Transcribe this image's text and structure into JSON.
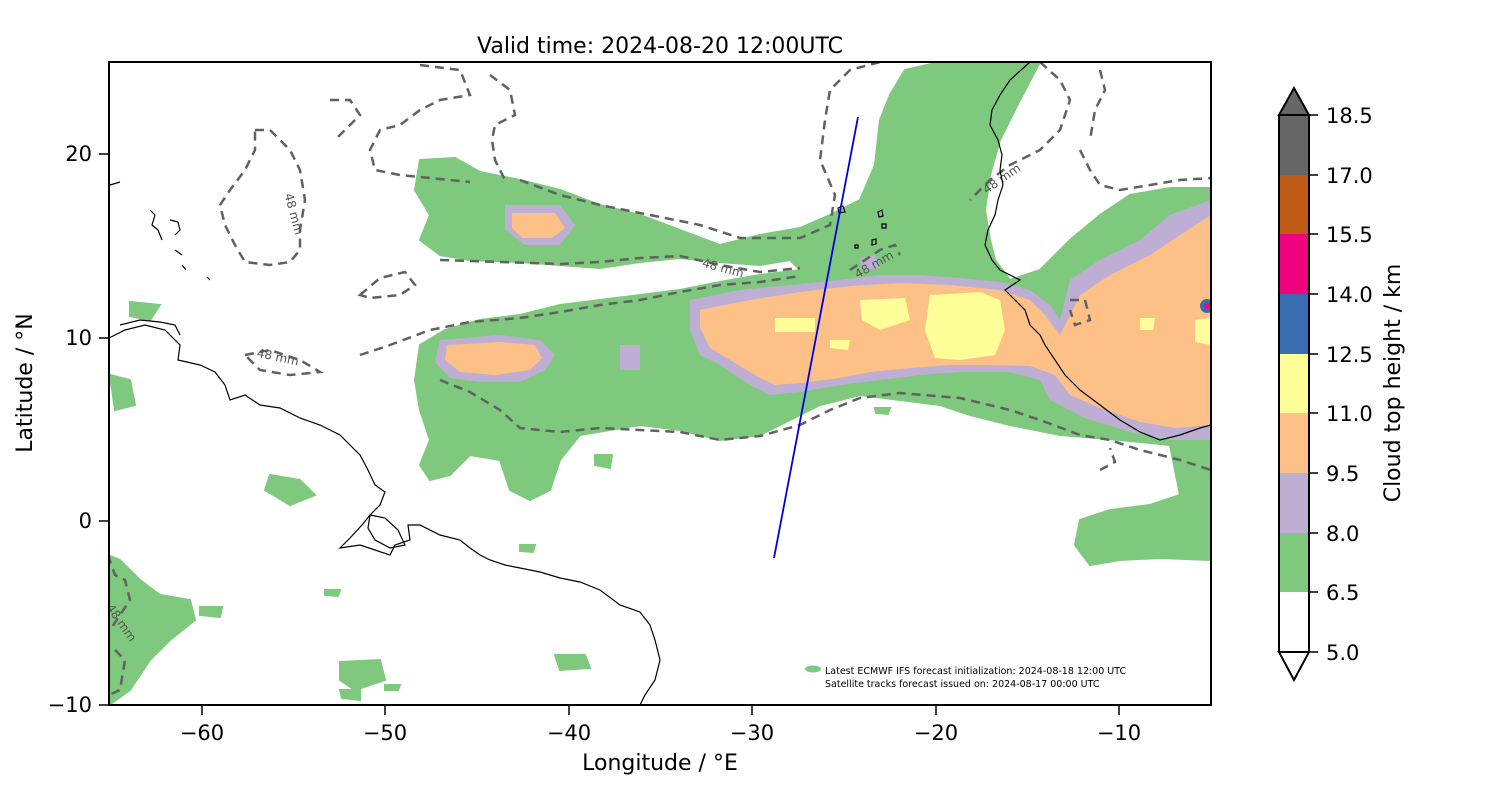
{
  "title": "Valid time: 2024-08-20 12:00UTC",
  "xlabel": "Longitude / °E",
  "ylabel": "Latitude / °N",
  "x_ticks": [
    "−60",
    "−50",
    "−40",
    "−30",
    "−20",
    "−10"
  ],
  "y_ticks": [
    "20",
    "10",
    "0",
    "−10"
  ],
  "colorbar": {
    "label": "Cloud top height / km",
    "ticks": [
      "18.5",
      "17.0",
      "15.5",
      "14.0",
      "12.5",
      "11.0",
      "9.5",
      "8.0",
      "6.5",
      "5.0"
    ],
    "colors": [
      "#ffffff",
      "#7fc97f",
      "#beaed4",
      "#fdc086",
      "#ffff99",
      "#386cb0",
      "#f0027f",
      "#bf5b17",
      "#666666"
    ]
  },
  "contour_label": "48 mm",
  "info_lines": [
    "Latest ECMWF IFS forecast initialization: 2024-08-18 12:00 UTC",
    "Satellite tracks forecast issued on: 2024-08-17 00:00 UTC"
  ],
  "chart_data": {
    "type": "heatmap",
    "title": "Valid time: 2024-08-20 12:00UTC",
    "xlabel": "Longitude / °E",
    "ylabel": "Latitude / °N",
    "xlim": [
      -65,
      -5
    ],
    "ylim": [
      -10,
      25
    ],
    "x_ticks": [
      -60,
      -50,
      -40,
      -30,
      -20,
      -10
    ],
    "y_ticks": [
      20,
      10,
      0,
      -10
    ],
    "colorbar_levels_km": [
      5.0,
      6.5,
      8.0,
      9.5,
      11.0,
      12.5,
      14.0,
      15.5,
      17.0,
      18.5
    ],
    "satellite_track": [
      [
        -28.9,
        -2.0
      ],
      [
        -24.2,
        22.0
      ]
    ],
    "contour_value": "48 mm"
  }
}
